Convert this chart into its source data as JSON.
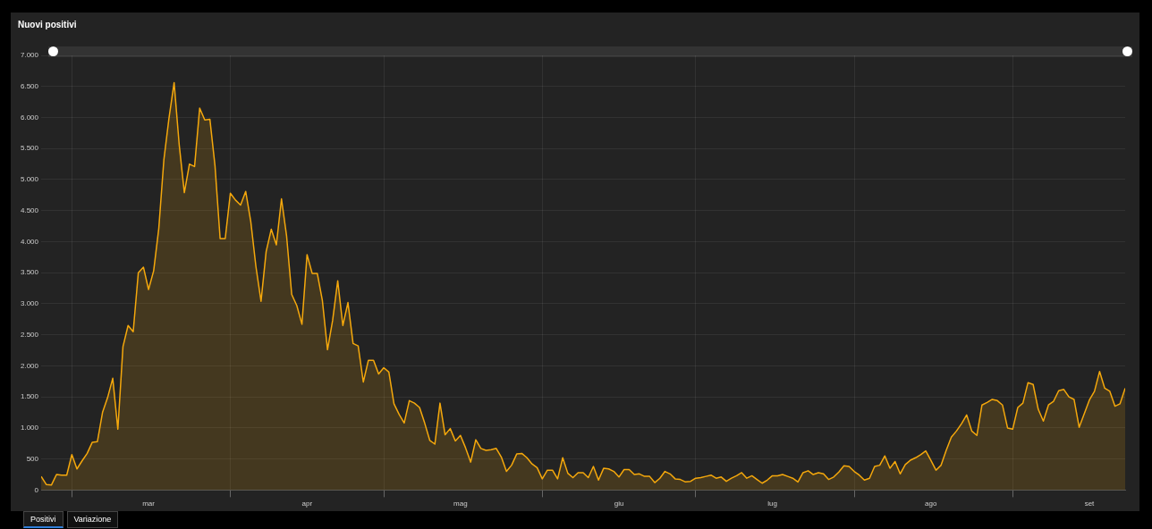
{
  "chart_data": {
    "type": "area",
    "title": "Nuovi positivi",
    "x": [
      "--02-24",
      "--02-25",
      "--02-26",
      "--02-27",
      "--02-28",
      "--02-29",
      "--03-01",
      "--03-02",
      "--03-03",
      "--03-04",
      "--03-05",
      "--03-06",
      "--03-07",
      "--03-08",
      "--03-09",
      "--03-10",
      "--03-11",
      "--03-12",
      "--03-13",
      "--03-14",
      "--03-15",
      "--03-16",
      "--03-17",
      "--03-18",
      "--03-19",
      "--03-20",
      "--03-21",
      "--03-22",
      "--03-23",
      "--03-24",
      "--03-25",
      "--03-26",
      "--03-27",
      "--03-28",
      "--03-29",
      "--03-30",
      "--03-31",
      "--04-01",
      "--04-02",
      "--04-03",
      "--04-04",
      "--04-05",
      "--04-06",
      "--04-07",
      "--04-08",
      "--04-09",
      "--04-10",
      "--04-11",
      "--04-12",
      "--04-13",
      "--04-14",
      "--04-15",
      "--04-16",
      "--04-17",
      "--04-18",
      "--04-19",
      "--04-20",
      "--04-21",
      "--04-22",
      "--04-23",
      "--04-24",
      "--04-25",
      "--04-26",
      "--04-27",
      "--04-28",
      "--04-29",
      "--04-30",
      "--05-01",
      "--05-02",
      "--05-03",
      "--05-04",
      "--05-05",
      "--05-06",
      "--05-07",
      "--05-08",
      "--05-09",
      "--05-10",
      "--05-11",
      "--05-12",
      "--05-13",
      "--05-14",
      "--05-15",
      "--05-16",
      "--05-17",
      "--05-18",
      "--05-19",
      "--05-20",
      "--05-21",
      "--05-22",
      "--05-23",
      "--05-24",
      "--05-25",
      "--05-26",
      "--05-27",
      "--05-28",
      "--05-29",
      "--05-30",
      "--05-31",
      "--06-01",
      "--06-02",
      "--06-03",
      "--06-04",
      "--06-05",
      "--06-06",
      "--06-07",
      "--06-08",
      "--06-09",
      "--06-10",
      "--06-11",
      "--06-12",
      "--06-13",
      "--06-14",
      "--06-15",
      "--06-16",
      "--06-17",
      "--06-18",
      "--06-19",
      "--06-20",
      "--06-21",
      "--06-22",
      "--06-23",
      "--06-24",
      "--06-25",
      "--06-26",
      "--06-27",
      "--06-28",
      "--06-29",
      "--06-30",
      "--07-01",
      "--07-02",
      "--07-03",
      "--07-04",
      "--07-05",
      "--07-06",
      "--07-07",
      "--07-08",
      "--07-09",
      "--07-10",
      "--07-11",
      "--07-12",
      "--07-13",
      "--07-14",
      "--07-15",
      "--07-16",
      "--07-17",
      "--07-18",
      "--07-19",
      "--07-20",
      "--07-21",
      "--07-22",
      "--07-23",
      "--07-24",
      "--07-25",
      "--07-26",
      "--07-27",
      "--07-28",
      "--07-29",
      "--07-30",
      "--07-31",
      "--08-01",
      "--08-02",
      "--08-03",
      "--08-04",
      "--08-05",
      "--08-06",
      "--08-07",
      "--08-08",
      "--08-09",
      "--08-10",
      "--08-11",
      "--08-12",
      "--08-13",
      "--08-14",
      "--08-15",
      "--08-16",
      "--08-17",
      "--08-18",
      "--08-19",
      "--08-20",
      "--08-21",
      "--08-22",
      "--08-23",
      "--08-24",
      "--08-25",
      "--08-26",
      "--08-27",
      "--08-28",
      "--08-29",
      "--08-30",
      "--08-31",
      "--09-01",
      "--09-02",
      "--09-03",
      "--09-04",
      "--09-05",
      "--09-06",
      "--09-07",
      "--09-08",
      "--09-09",
      "--09-10",
      "--09-11",
      "--09-12",
      "--09-13",
      "--09-14",
      "--09-15",
      "--09-16",
      "--09-17",
      "--09-18",
      "--09-19",
      "--09-20",
      "--09-21",
      "--09-22",
      "--09-23"
    ],
    "series": [
      {
        "color": "#f5a80c",
        "values": [
          220,
          90,
          80,
          250,
          240,
          240,
          570,
          340,
          470,
          590,
          770,
          780,
          1250,
          1490,
          1800,
          980,
          2310,
          2650,
          2550,
          3500,
          3590,
          3230,
          3530,
          4210,
          5320,
          5990,
          6560,
          5560,
          4790,
          5250,
          5210,
          6150,
          5960,
          5970,
          5220,
          4050,
          4050,
          4780,
          4670,
          4590,
          4810,
          4320,
          3600,
          3040,
          3840,
          4200,
          3950,
          4690,
          4090,
          3150,
          2970,
          2670,
          3790,
          3490,
          3490,
          3050,
          2260,
          2730,
          3370,
          2650,
          3020,
          2360,
          2320,
          1740,
          2090,
          2090,
          1870,
          1970,
          1900,
          1390,
          1220,
          1080,
          1440,
          1400,
          1330,
          1080,
          800,
          740,
          1400,
          890,
          990,
          790,
          880,
          680,
          450,
          810,
          670,
          640,
          650,
          670,
          530,
          300,
          400,
          580,
          590,
          520,
          420,
          360,
          180,
          320,
          320,
          180,
          520,
          270,
          200,
          280,
          280,
          200,
          380,
          160,
          350,
          340,
          300,
          210,
          330,
          330,
          250,
          260,
          220,
          220,
          120,
          190,
          300,
          260,
          180,
          170,
          130,
          140,
          190,
          200,
          220,
          240,
          190,
          210,
          140,
          190,
          230,
          280,
          190,
          230,
          170,
          110,
          160,
          230,
          230,
          250,
          220,
          190,
          130,
          280,
          310,
          250,
          280,
          260,
          170,
          210,
          290,
          390,
          380,
          300,
          240,
          160,
          190,
          380,
          400,
          550,
          350,
          460,
          260,
          410,
          480,
          520,
          570,
          630,
          480,
          320,
          400,
          640,
          850,
          950,
          1070,
          1210,
          950,
          880,
          1370,
          1410,
          1460,
          1440,
          1370,
          1000,
          980,
          1330,
          1400,
          1730,
          1700,
          1300,
          1110,
          1370,
          1430,
          1600,
          1620,
          1500,
          1460,
          1010,
          1230,
          1450,
          1590,
          1910,
          1640,
          1590,
          1350,
          1390,
          1640
        ]
      }
    ],
    "xlim": [
      "--02-24",
      "--09-23"
    ],
    "xticks": [
      {
        "value": "--03-01",
        "label": null
      },
      {
        "value": "--03-16",
        "label": "mar"
      },
      {
        "value": "--04-01",
        "label": null
      },
      {
        "value": "--04-16",
        "label": "apr"
      },
      {
        "value": "--05-01",
        "label": null
      },
      {
        "value": "--05-16",
        "label": "mag"
      },
      {
        "value": "--06-01",
        "label": null
      },
      {
        "value": "--06-16",
        "label": "giu"
      },
      {
        "value": "--07-01",
        "label": null
      },
      {
        "value": "--07-16",
        "label": "lug"
      },
      {
        "value": "--08-01",
        "label": null
      },
      {
        "value": "--08-16",
        "label": "ago"
      },
      {
        "value": "--09-01",
        "label": null
      },
      {
        "value": "--09-16",
        "label": "set"
      }
    ],
    "ylim": [
      0,
      7000
    ],
    "yticks": [
      0,
      500,
      {
        "value": 1000,
        "label": "1.000"
      },
      {
        "value": 1500,
        "label": "1.500"
      },
      {
        "value": 2000,
        "label": "2.000"
      },
      {
        "value": 2500,
        "label": "2.500"
      },
      {
        "value": 3000,
        "label": "3.000"
      },
      {
        "value": 3500,
        "label": "3.500"
      },
      {
        "value": 4000,
        "label": "4.000"
      },
      {
        "value": 4500,
        "label": "4.500"
      },
      {
        "value": 5000,
        "label": "5.000"
      },
      {
        "value": 5500,
        "label": "5.500"
      },
      {
        "value": 6000,
        "label": "6.000"
      },
      {
        "value": 6500,
        "label": "6.500"
      },
      {
        "value": 7000,
        "label": "7.000"
      }
    ],
    "grid": true,
    "legend": false,
    "marker": "none",
    "annotations": [
      "Positivi",
      "Variazione"
    ]
  }
}
